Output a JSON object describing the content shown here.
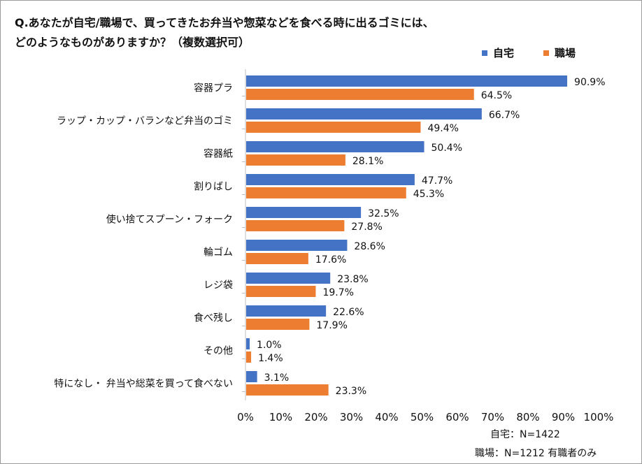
{
  "title_lines": [
    "Q.あなたが自宅/職場で、買ってきたお弁当や惣菜などを食べる時に出るゴミには、",
    "どのようなものがありますか？（複数選択可）"
  ],
  "chart_data": {
    "type": "bar",
    "orientation": "horizontal",
    "categories": [
      "容器プラ",
      "ラップ・カップ・バランなど弁当のゴミ",
      "容器紙",
      "割りばし",
      "使い捨てスプーン・フォーク",
      "輪ゴム",
      "レジ袋",
      "食べ残し",
      "その他",
      "特になし・ 弁当や総菜を買って食べない"
    ],
    "series": [
      {
        "name": "自宅",
        "color": "#4472C4",
        "values": [
          90.9,
          66.7,
          50.4,
          47.7,
          32.5,
          28.6,
          23.8,
          22.6,
          1.0,
          3.1
        ]
      },
      {
        "name": "職場",
        "color": "#ED7D31",
        "values": [
          64.5,
          49.4,
          28.1,
          45.3,
          27.8,
          17.6,
          19.7,
          17.9,
          1.4,
          23.3
        ]
      }
    ],
    "xlim": [
      0,
      100
    ],
    "xticks": [
      "0%",
      "10%",
      "20%",
      "30%",
      "40%",
      "50%",
      "60%",
      "70%",
      "80%",
      "90%",
      "100%"
    ],
    "value_suffix": "%",
    "legend_position": "top-right",
    "grid": false
  },
  "notes": [
    "自宅：N=1422",
    "職場：N=1212 有職者のみ"
  ]
}
